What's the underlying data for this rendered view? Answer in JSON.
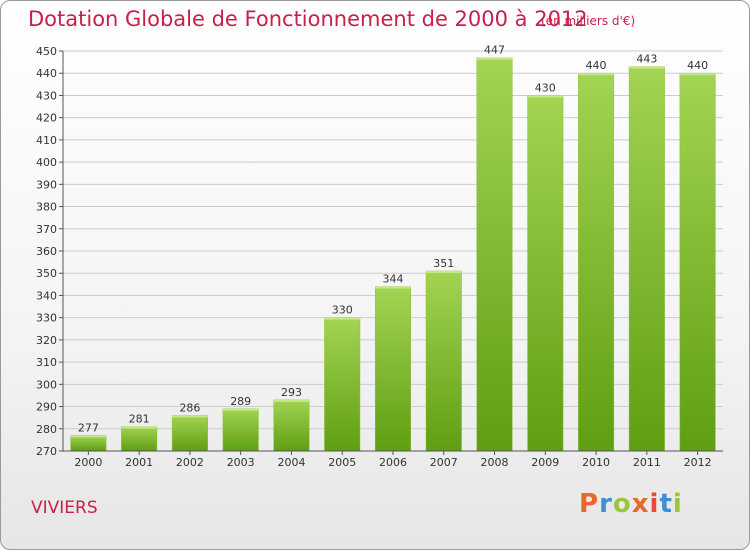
{
  "header": {
    "title": "Dotation Globale de Fonctionnement de 2000 à 2012",
    "subtitle": "(en milliers d'€)"
  },
  "footer": {
    "commune": "VIVIERS",
    "logo_text": "Proxiti"
  },
  "colors": {
    "title": "#c8204a",
    "bar_top": "#9fd04e",
    "bar_bottom": "#5f9e12",
    "grid": "#cccccc",
    "logo": [
      "#e8672a",
      "#3f8fd4",
      "#9bc53d",
      "#e8672a",
      "#e84a3a",
      "#3f8fd4",
      "#9bc53d"
    ]
  },
  "chart_data": {
    "type": "bar",
    "categories": [
      "2000",
      "2001",
      "2002",
      "2003",
      "2004",
      "2005",
      "2006",
      "2007",
      "2008",
      "2009",
      "2010",
      "2011",
      "2012"
    ],
    "values": [
      277,
      281,
      286,
      289,
      293,
      330,
      344,
      351,
      447,
      430,
      440,
      443,
      440
    ],
    "title": "Dotation Globale de Fonctionnement de 2000 à 2012",
    "subtitle": "(en milliers d'€)",
    "ylim": [
      270,
      450
    ],
    "yticks": [
      270,
      280,
      290,
      300,
      310,
      320,
      330,
      340,
      350,
      360,
      370,
      380,
      390,
      400,
      410,
      420,
      430,
      440,
      450
    ],
    "grid": true,
    "legend": "none"
  }
}
